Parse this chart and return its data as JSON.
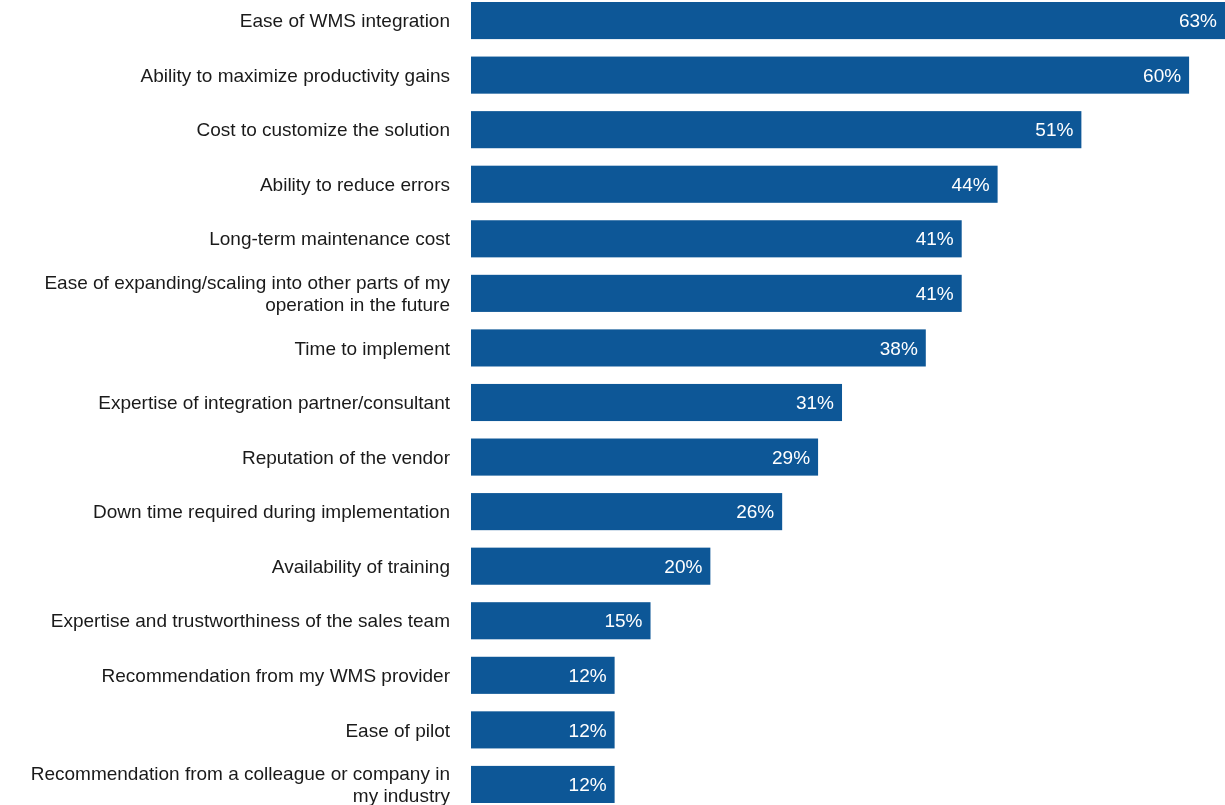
{
  "chart_data": {
    "type": "bar",
    "orientation": "horizontal",
    "color": "#0d5797",
    "categories": [
      "Ease of WMS integration",
      "Ability to maximize productivity gains",
      "Cost to customize the solution",
      "Ability to reduce errors",
      "Long-term maintenance cost",
      "Ease of expanding/scaling into other parts of my operation in the future",
      "Time to implement",
      "Expertise of integration partner/consultant",
      "Reputation of the vendor",
      "Down time required during implementation",
      "Availability of training",
      "Expertise and trustworthiness of the sales team",
      "Recommendation from my WMS provider",
      "Ease of pilot",
      "Recommendation from a colleague or company in my industry"
    ],
    "values": [
      63,
      60,
      51,
      44,
      41,
      41,
      38,
      31,
      29,
      26,
      20,
      15,
      12,
      12,
      12
    ],
    "value_labels": [
      "63%",
      "60%",
      "51%",
      "44%",
      "41%",
      "41%",
      "38%",
      "31%",
      "29%",
      "26%",
      "20%",
      "15%",
      "12%",
      "12%",
      "12%"
    ]
  }
}
